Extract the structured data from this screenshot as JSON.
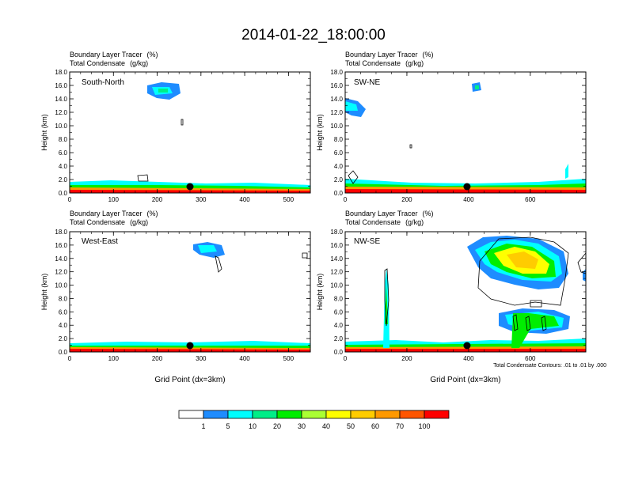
{
  "title": "2014-01-22_18:00:00",
  "chart_data": {
    "type": "heatmap",
    "shared": {
      "field_label": "Boundary Layer Tracer",
      "field_unit": "(%)",
      "contour_label": "Total Condensate",
      "contour_unit": "(g/kg)",
      "ylabel": "Height (km)",
      "xlabel": "Grid Point (dx=3km)",
      "ylim": [
        0,
        18
      ],
      "yticks": [
        "0.0",
        "2.0",
        "4.0",
        "6.0",
        "8.0",
        "10.0",
        "12.0",
        "14.0",
        "16.0",
        "18.0"
      ]
    },
    "panels": [
      {
        "name": "South-North",
        "xlim": [
          0,
          550
        ],
        "xticks": [
          "0",
          "100",
          "200",
          "300",
          "400",
          "500"
        ],
        "xtick_values": [
          0,
          100,
          200,
          300,
          400,
          500
        ],
        "marker_x": 275,
        "show_xlabel": false
      },
      {
        "name": "SW-NE",
        "xlim": [
          0,
          780
        ],
        "xticks": [
          "0",
          "200",
          "400",
          "600"
        ],
        "xtick_values": [
          0,
          200,
          400,
          600
        ],
        "marker_x": 395,
        "show_xlabel": false
      },
      {
        "name": "West-East",
        "xlim": [
          0,
          550
        ],
        "xticks": [
          "0",
          "100",
          "200",
          "300",
          "400",
          "500"
        ],
        "xtick_values": [
          0,
          100,
          200,
          300,
          400,
          500
        ],
        "marker_x": 275,
        "show_xlabel": true
      },
      {
        "name": "NW-SE",
        "xlim": [
          0,
          780
        ],
        "xticks": [
          "0",
          "200",
          "400",
          "600"
        ],
        "xtick_values": [
          0,
          200,
          400,
          600
        ],
        "marker_x": 395,
        "show_xlabel": true
      }
    ],
    "contour_note": "Total Condensate Contours: .01 to .01 by .000",
    "legend": {
      "colors": [
        "#ffffff",
        "#1e8cff",
        "#00ffff",
        "#00ee88",
        "#00ee00",
        "#aaff33",
        "#ffff00",
        "#ffcc00",
        "#ff9900",
        "#ff5500",
        "#ff0000"
      ],
      "labels": [
        "1",
        "5",
        "10",
        "20",
        "30",
        "40",
        "50",
        "60",
        "70",
        "100"
      ]
    }
  }
}
